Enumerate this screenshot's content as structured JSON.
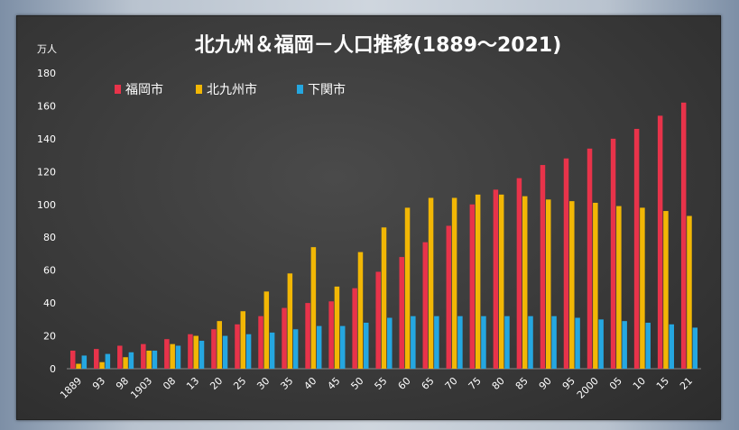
{
  "chart_data": {
    "type": "bar",
    "title": "北九州＆福岡－人口推移(1889～2021)",
    "unit_label": "万人",
    "ylim": [
      0,
      180
    ],
    "yticks": [
      0,
      20,
      40,
      60,
      80,
      100,
      120,
      140,
      160,
      180
    ],
    "grid": false,
    "legend_position": "top-left",
    "categories": [
      "1889",
      "93",
      "98",
      "1903",
      "08",
      "13",
      "20",
      "25",
      "30",
      "35",
      "40",
      "45",
      "50",
      "55",
      "60",
      "65",
      "70",
      "75",
      "80",
      "85",
      "90",
      "95",
      "2000",
      "05",
      "10",
      "15",
      "21"
    ],
    "series": [
      {
        "name": "福岡市",
        "color": "#e8334a",
        "values": [
          11,
          12,
          14,
          15,
          18,
          21,
          24,
          27,
          32,
          37,
          40,
          41,
          49,
          59,
          68,
          77,
          87,
          100,
          109,
          116,
          124,
          128,
          134,
          140,
          146,
          154,
          162
        ]
      },
      {
        "name": "北九州市",
        "color": "#f2b705",
        "values": [
          3,
          4,
          7,
          11,
          15,
          20,
          29,
          35,
          47,
          58,
          74,
          50,
          71,
          86,
          98,
          104,
          104,
          106,
          106,
          105,
          103,
          102,
          101,
          99,
          98,
          96,
          93
        ]
      },
      {
        "name": "下関市",
        "color": "#25a7e0",
        "values": [
          8,
          9,
          10,
          11,
          14,
          17,
          20,
          21,
          22,
          24,
          26,
          26,
          28,
          31,
          32,
          32,
          32,
          32,
          32,
          32,
          32,
          31,
          30,
          29,
          28,
          27,
          25
        ]
      }
    ]
  }
}
